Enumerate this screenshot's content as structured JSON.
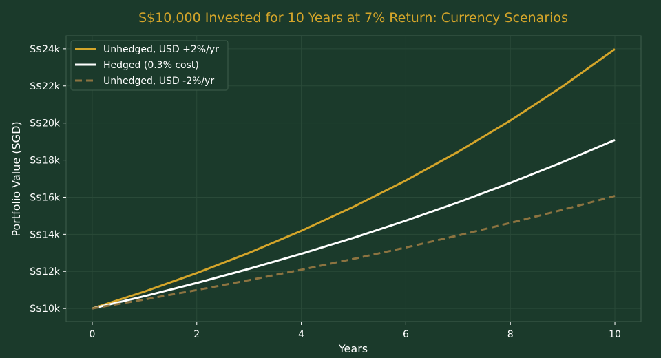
{
  "colors": {
    "background": "#1b3a2b",
    "plot_border": "#3f5f4c",
    "grid": "#2a4a39",
    "title": "#d4a52a",
    "text": "#ffffff"
  },
  "chart_data": {
    "type": "line",
    "title": "S$10,000 Invested for 10 Years at 7% Return: Currency Scenarios",
    "xlabel": "Years",
    "ylabel": "Portfolio Value (SGD)",
    "xlim": [
      -0.5,
      10.5
    ],
    "ylim": [
      9300,
      24700
    ],
    "xticks": [
      0,
      2,
      4,
      6,
      8,
      10
    ],
    "xtick_labels": [
      "0",
      "2",
      "4",
      "6",
      "8",
      "10"
    ],
    "yticks": [
      10000,
      12000,
      14000,
      16000,
      18000,
      20000,
      22000,
      24000
    ],
    "ytick_labels": [
      "S$10k",
      "S$12k",
      "S$14k",
      "S$16k",
      "S$18k",
      "S$20k",
      "S$22k",
      "S$24k"
    ],
    "grid": true,
    "legend_position": "top-left",
    "x": [
      0,
      1,
      2,
      3,
      4,
      5,
      6,
      7,
      8,
      9,
      10
    ],
    "series": [
      {
        "name": "Unhedged, USD +2%/yr",
        "color": "#d4a52a",
        "style": "solid",
        "values": [
          10000,
          10914,
          11911,
          13000,
          14188,
          15485,
          16901,
          18446,
          20133,
          21973,
          23982
        ]
      },
      {
        "name": "Hedged (0.3% cost)",
        "color": "#ffffff",
        "style": "solid",
        "values": [
          10000,
          10667,
          11379,
          12139,
          12949,
          13814,
          14736,
          15720,
          16769,
          17889,
          19083
        ]
      },
      {
        "name": "Unhedged, USD -2%/yr",
        "color": "#8c7340",
        "style": "dashed",
        "values": [
          10000,
          10486,
          10995,
          11529,
          12089,
          12676,
          13291,
          13937,
          14614,
          15324,
          16068
        ]
      }
    ]
  }
}
